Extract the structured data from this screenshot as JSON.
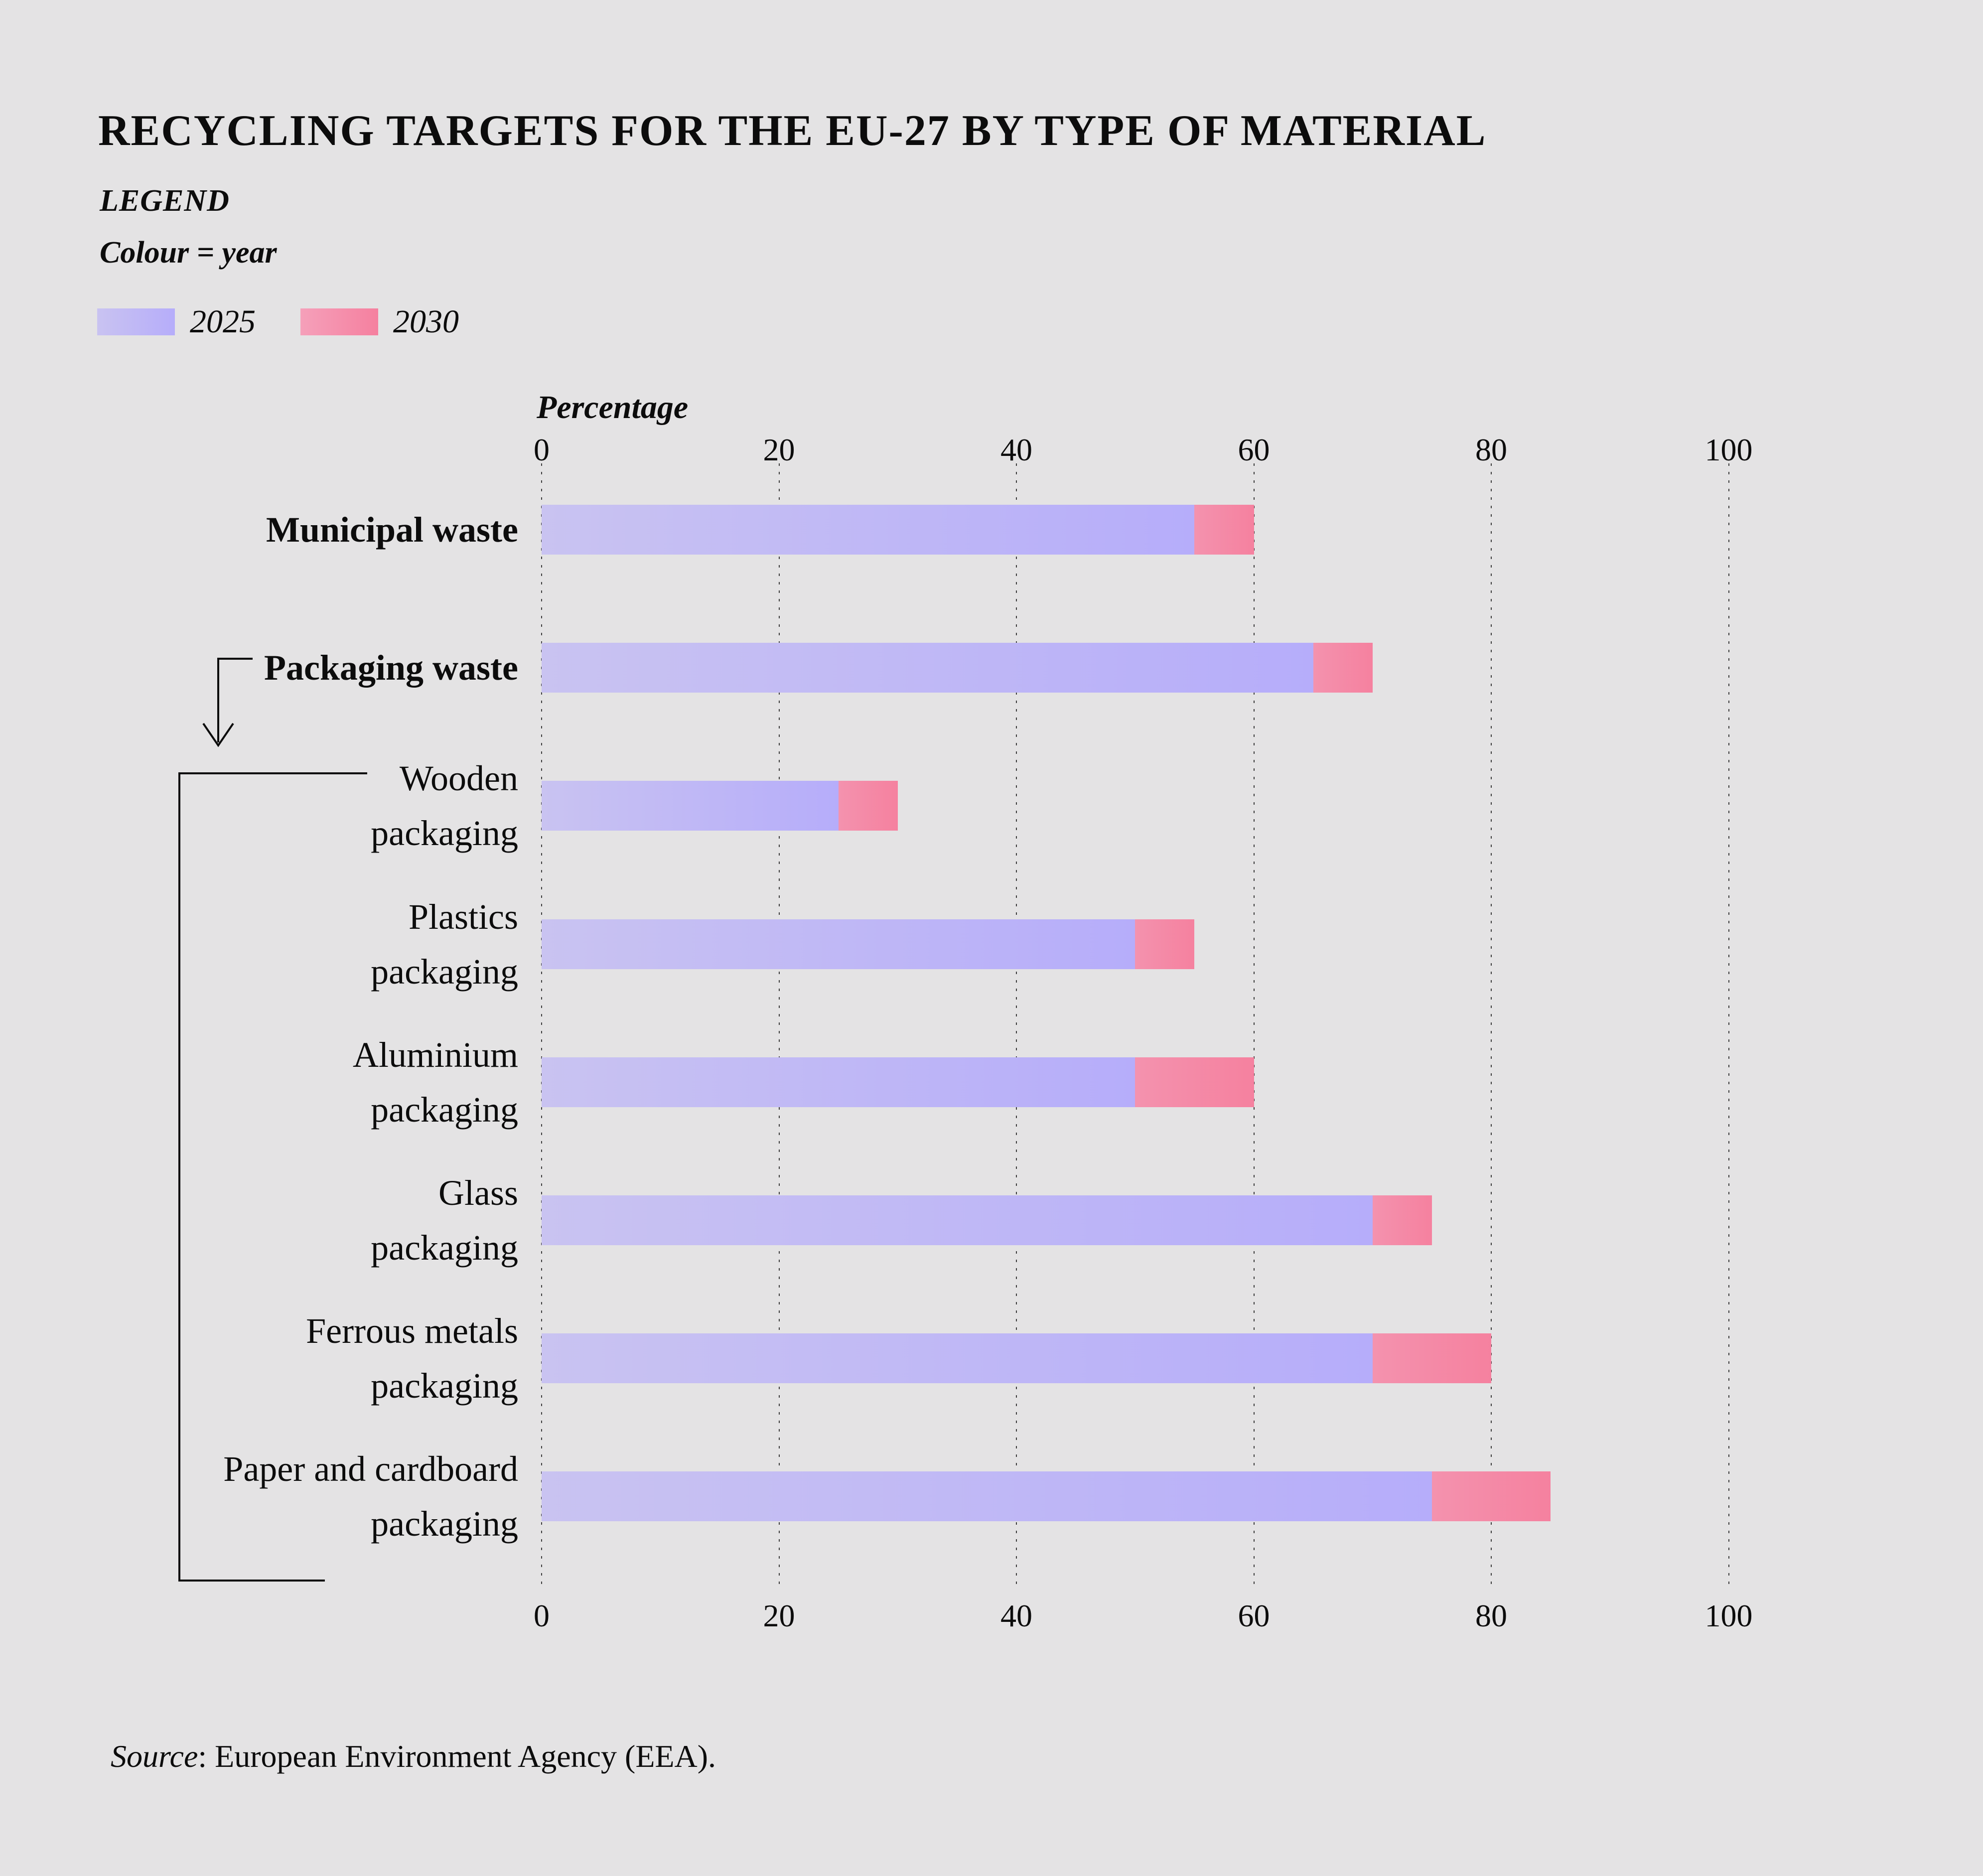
{
  "page": {
    "title": "RECYCLING TARGETS FOR THE EU-27 BY TYPE OF MATERIAL",
    "background": "#e4e3e4"
  },
  "legend": {
    "heading": "LEGEND",
    "subheading": "Colour = year",
    "items": [
      {
        "label": "2025",
        "color_start": "#c9c3f1",
        "color_end": "#b6adfa"
      },
      {
        "label": "2030",
        "color_start": "#f5a0ba",
        "color_end": "#f5809f"
      }
    ]
  },
  "axis": {
    "label": "Percentage",
    "ticks": [
      0,
      20,
      40,
      60,
      80,
      100
    ]
  },
  "source": {
    "prefix": "Source",
    "rest": ": European Environment Agency (EEA)."
  },
  "chart_data": {
    "type": "bar",
    "orientation": "horizontal",
    "title": "RECYCLING TARGETS FOR THE EU-27 BY TYPE OF MATERIAL",
    "xlabel": "Percentage",
    "ylabel": "",
    "xlim": [
      0,
      100
    ],
    "xticks": [
      0,
      20,
      40,
      60,
      80,
      100
    ],
    "grid": "vertical dotted gridlines",
    "legend_position": "top-left",
    "legend_note": "Colour = year",
    "categories": [
      "Municipal waste",
      "Packaging waste",
      "Wooden packaging",
      "Plastics packaging",
      "Aluminium packaging",
      "Glass packaging",
      "Ferrous metals packaging",
      "Paper and cardboard packaging"
    ],
    "category_label_lines": [
      [
        "Municipal waste"
      ],
      [
        "Packaging waste"
      ],
      [
        "Wooden",
        "packaging"
      ],
      [
        "Plastics",
        "packaging"
      ],
      [
        "Aluminium",
        "packaging"
      ],
      [
        "Glass",
        "packaging"
      ],
      [
        "Ferrous metals",
        "packaging"
      ],
      [
        "Paper and cardboard",
        "packaging"
      ]
    ],
    "category_emphasis": [
      true,
      true,
      false,
      false,
      false,
      false,
      false,
      false
    ],
    "series": [
      {
        "name": "2025",
        "values": [
          55,
          65,
          25,
          50,
          50,
          70,
          70,
          75
        ]
      },
      {
        "name": "2030",
        "values": [
          60,
          70,
          30,
          55,
          60,
          75,
          80,
          85
        ]
      }
    ],
    "hierarchy_note": "Packaging waste splits into the six packaging sub-categories (bracket annotation)"
  }
}
